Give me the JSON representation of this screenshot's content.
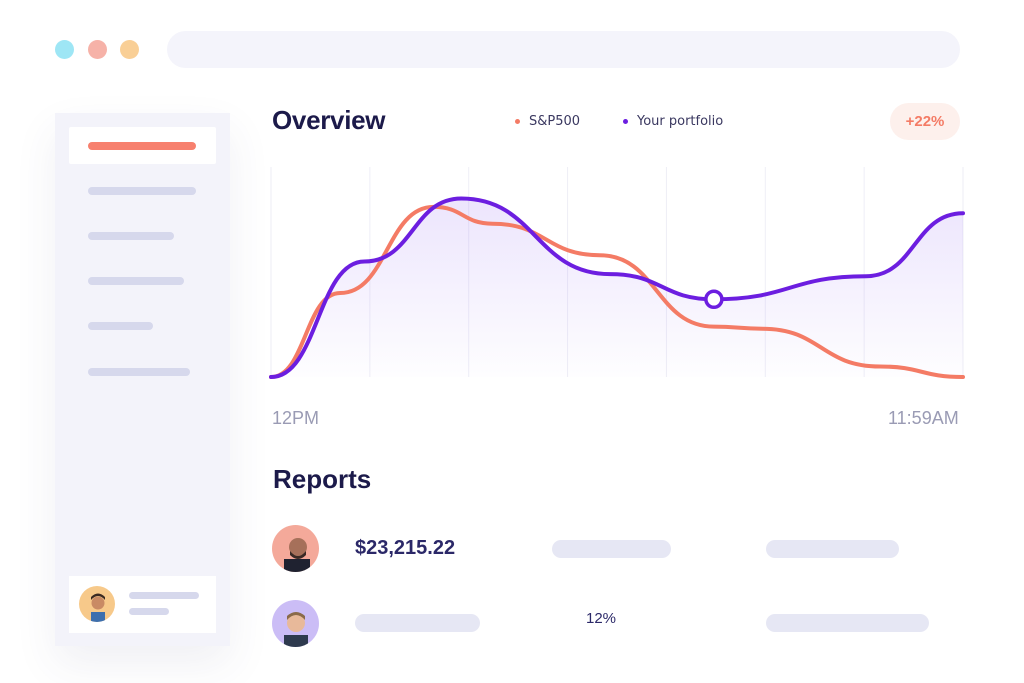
{
  "window": {
    "controls": [
      "close",
      "minimize",
      "maximize"
    ]
  },
  "overview": {
    "title": "Overview",
    "legend": [
      {
        "label": "S&P500",
        "color": "#f47b65"
      },
      {
        "label": "Your portfolio",
        "color": "#6c1ee0"
      }
    ],
    "change_badge": "+22%"
  },
  "chart_data": {
    "type": "line",
    "x_start_label": "12PM",
    "x_end_label": "11:59AM",
    "grid": "vertical",
    "series": [
      {
        "name": "S&P500",
        "color": "#f47b65",
        "x": [
          0,
          0.1,
          0.235,
          0.32,
          0.475,
          0.64,
          0.71,
          0.88,
          1.0
        ],
        "values": [
          0.0,
          0.4,
          0.81,
          0.73,
          0.58,
          0.24,
          0.23,
          0.05,
          0.0
        ]
      },
      {
        "name": "Your portfolio",
        "color": "#6c1ee0",
        "x": [
          0,
          0.135,
          0.275,
          0.49,
          0.64,
          0.86,
          1.0
        ],
        "values": [
          0.0,
          0.55,
          0.85,
          0.49,
          0.37,
          0.48,
          0.78
        ]
      }
    ],
    "highlight_point": {
      "series": "Your portfolio",
      "x": 0.64
    }
  },
  "reports": {
    "title": "Reports",
    "rows": [
      {
        "amount": "$23,215.22",
        "percent": ""
      },
      {
        "amount": "",
        "percent": "12%"
      }
    ]
  },
  "icons": [
    "avatar-user",
    "avatar-report-1",
    "avatar-report-2"
  ]
}
